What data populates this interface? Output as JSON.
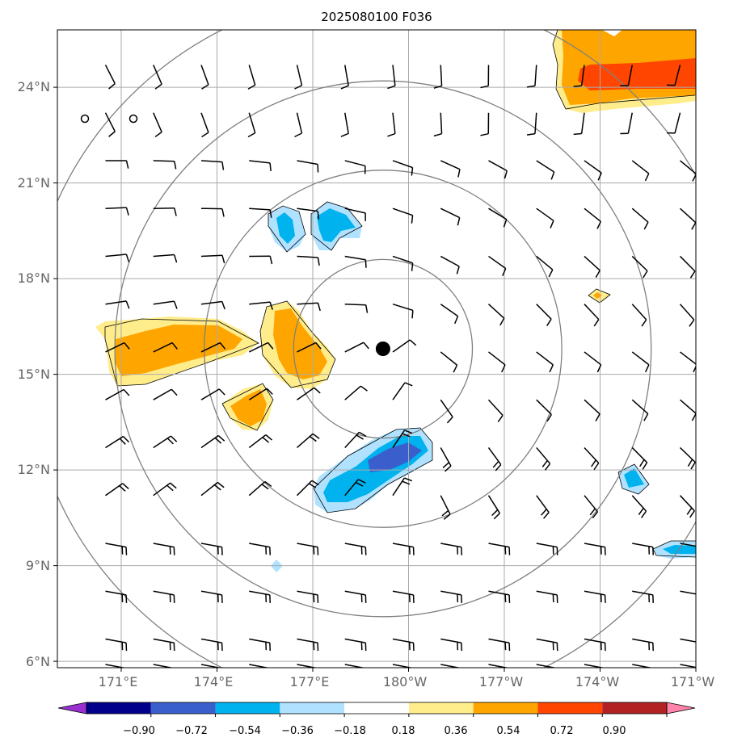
{
  "title": "2025080100 F036",
  "map": {
    "lon_ticks": [
      "171°E",
      "174°E",
      "177°E",
      "180°W",
      "177°W",
      "174°W",
      "171°W"
    ],
    "lat_ticks": [
      "24°N",
      "21°N",
      "18°N",
      "15°N",
      "12°N",
      "9°N",
      "6°N"
    ],
    "lon_range_deg_east": [
      169.0,
      189.0
    ],
    "lat_range_deg_north": [
      5.8,
      25.8
    ],
    "storm_center": {
      "lon": 179.2,
      "lat": 15.8
    },
    "range_ring_radii_deg": [
      2.8,
      5.6,
      8.4,
      11.2
    ],
    "gridlines": true
  },
  "colorbar": {
    "labels": [
      "−0.90",
      "−0.72",
      "−0.54",
      "−0.36",
      "−0.18",
      "0.18",
      "0.36",
      "0.54",
      "0.72",
      "0.90"
    ],
    "colors": [
      "#9b30d0",
      "#00008b",
      "#3a5fcd",
      "#00b2ee",
      "#b0e2ff",
      "#ffffff",
      "#ffec8b",
      "#ffa500",
      "#ff4500",
      "#b22222",
      "#ff82ab"
    ],
    "extend": "both"
  },
  "shading": {
    "positive_color_light": "#ffec8b",
    "positive_color_mid": "#ffa500",
    "positive_color_high": "#ff4500",
    "negative_color_light": "#b0e2ff",
    "negative_color_mid": "#00b2ee",
    "negative_color_high": "#3a5fcd"
  },
  "colors": {
    "grid": "#aaaaaa",
    "rings": "#808080",
    "barbs": "#000000",
    "tick_label": "#666666"
  }
}
